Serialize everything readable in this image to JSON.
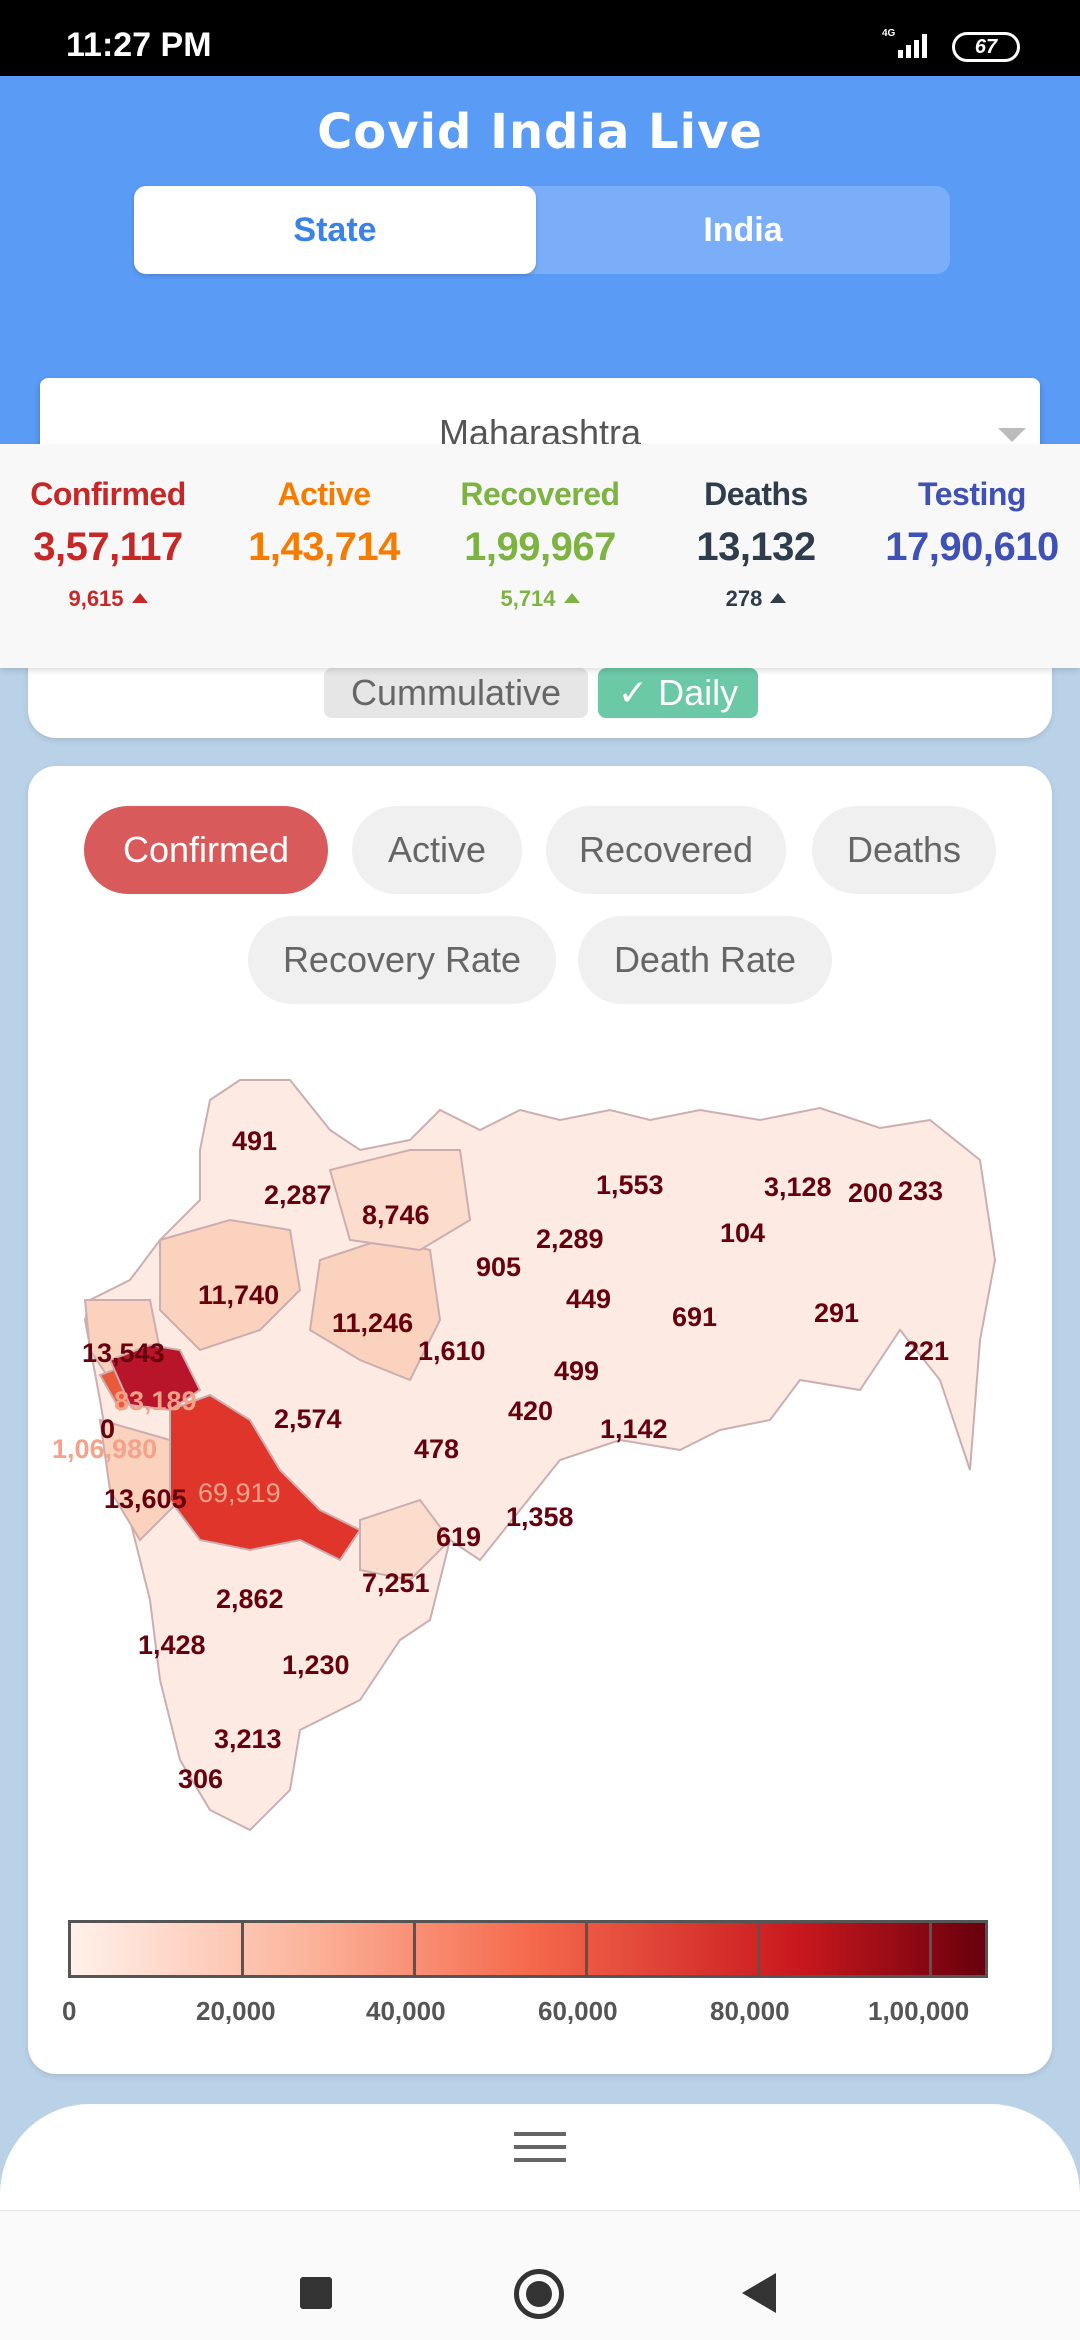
{
  "status_bar": {
    "time": "11:27 PM",
    "network": "4G",
    "battery": "67"
  },
  "header": {
    "title": "Covid India Live",
    "tabs": [
      "State",
      "India"
    ],
    "selected_tab": "State"
  },
  "state_select": {
    "value": "Maharashtra"
  },
  "stats": [
    {
      "label": "Confirmed",
      "value": "3,57,117",
      "delta": "9,615",
      "color": "#c62828"
    },
    {
      "label": "Active",
      "value": "1,43,714",
      "delta": "",
      "color": "#f57c00"
    },
    {
      "label": "Recovered",
      "value": "1,99,967",
      "delta": "5,714",
      "color": "#7cb342"
    },
    {
      "label": "Deaths",
      "value": "13,132",
      "delta": "278",
      "color": "#2f3c4c"
    },
    {
      "label": "Testing",
      "value": "17,90,610",
      "delta": "",
      "color": "#3f51b5"
    }
  ],
  "toggle": {
    "cumulative": "Cummulative",
    "daily": "Daily",
    "daily_check": "✓"
  },
  "metric_chips": [
    "Confirmed",
    "Active",
    "Recovered",
    "Deaths",
    "Recovery Rate",
    "Death Rate"
  ],
  "selected_metric": "Confirmed",
  "map": {
    "region": "Maharashtra",
    "districts": [
      {
        "label": "491",
        "value": 491
      },
      {
        "label": "2,287",
        "value": 2287
      },
      {
        "label": "8,746",
        "value": 8746
      },
      {
        "label": "1,553",
        "value": 1553
      },
      {
        "label": "3,128",
        "value": 3128
      },
      {
        "label": "200",
        "value": 200
      },
      {
        "label": "233",
        "value": 233
      },
      {
        "label": "2,289",
        "value": 2289
      },
      {
        "label": "104",
        "value": 104
      },
      {
        "label": "905",
        "value": 905
      },
      {
        "label": "11,740",
        "value": 11740
      },
      {
        "label": "449",
        "value": 449
      },
      {
        "label": "691",
        "value": 691
      },
      {
        "label": "291",
        "value": 291
      },
      {
        "label": "11,246",
        "value": 11246
      },
      {
        "label": "13,543",
        "value": 13543
      },
      {
        "label": "1,610",
        "value": 1610
      },
      {
        "label": "221",
        "value": 221
      },
      {
        "label": "499",
        "value": 499
      },
      {
        "label": "83,189",
        "value": 83189
      },
      {
        "label": "2,574",
        "value": 2574
      },
      {
        "label": "420",
        "value": 420
      },
      {
        "label": "0",
        "value": 0
      },
      {
        "label": "1,142",
        "value": 1142
      },
      {
        "label": "1,06,980",
        "value": 106980
      },
      {
        "label": "478",
        "value": 478
      },
      {
        "label": "69,919",
        "value": 69919
      },
      {
        "label": "13,605",
        "value": 13605
      },
      {
        "label": "1,358",
        "value": 1358
      },
      {
        "label": "619",
        "value": 619
      },
      {
        "label": "7,251",
        "value": 7251
      },
      {
        "label": "2,862",
        "value": 2862
      },
      {
        "label": "1,428",
        "value": 1428
      },
      {
        "label": "1,230",
        "value": 1230
      },
      {
        "label": "3,213",
        "value": 3213
      },
      {
        "label": "306",
        "value": 306
      }
    ]
  },
  "legend": {
    "ticks": [
      "0",
      "20,000",
      "40,000",
      "60,000",
      "80,000",
      "1,00,000"
    ]
  },
  "colors": {
    "header_bg": "#5a9bf6",
    "page_bg": "#bad2e8",
    "chip_selected": "#d95a5a",
    "daily_btn": "#6cc9a6"
  }
}
